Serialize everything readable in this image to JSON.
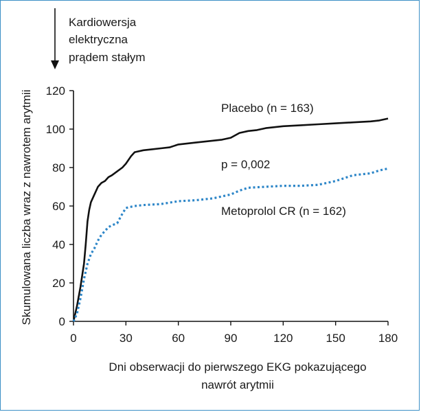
{
  "chart_data": {
    "type": "line",
    "title": "",
    "xlabel_lines": [
      "Dni obserwacji do pierwszego EKG pokazującego",
      "nawrót arytmii"
    ],
    "ylabel": "Skumulowana liczba wraz z nawrotem arytmii",
    "xlim": [
      0,
      180
    ],
    "ylim": [
      0,
      120
    ],
    "xticks": [
      0,
      30,
      60,
      90,
      120,
      150,
      180
    ],
    "yticks": [
      0,
      20,
      40,
      60,
      80,
      100,
      120
    ],
    "grid": false,
    "marker_label_lines": [
      "Kardiowersja",
      "elektryczna",
      "prądem stałym"
    ],
    "p_value": "p = 0,002",
    "series": [
      {
        "name": "Placebo (n = 163)",
        "color": "#111111",
        "style": "solid",
        "x": [
          0,
          2,
          4,
          6,
          7,
          8,
          9,
          10,
          12,
          14,
          16,
          18,
          20,
          22,
          25,
          28,
          30,
          33,
          35,
          40,
          45,
          50,
          55,
          60,
          70,
          80,
          85,
          90,
          95,
          100,
          105,
          110,
          120,
          130,
          140,
          150,
          160,
          170,
          175,
          180
        ],
        "y": [
          0,
          8,
          18,
          30,
          40,
          52,
          58,
          62,
          66,
          70,
          72,
          73,
          75,
          76,
          78,
          80,
          82,
          86,
          88,
          89,
          89.5,
          90,
          90.5,
          92,
          93,
          94,
          94.5,
          95.5,
          98,
          99,
          99.5,
          100.5,
          101.5,
          102,
          102.5,
          103,
          103.5,
          104,
          104.5,
          105.5
        ]
      },
      {
        "name": "Metoprolol CR (n = 162)",
        "color": "#2d86c8",
        "style": "dotted",
        "x": [
          0,
          2,
          4,
          6,
          8,
          10,
          12,
          14,
          16,
          18,
          20,
          22,
          25,
          28,
          30,
          35,
          40,
          50,
          60,
          70,
          80,
          90,
          95,
          100,
          110,
          120,
          130,
          140,
          150,
          160,
          170,
          175,
          180
        ],
        "y": [
          0,
          4,
          12,
          22,
          30,
          35,
          38,
          42,
          45,
          47,
          49,
          50,
          51,
          56,
          59,
          60,
          60.5,
          61,
          62.5,
          63,
          64,
          66,
          68,
          69.5,
          70,
          70.5,
          70.5,
          71,
          73,
          76,
          77,
          78.5,
          79.5
        ]
      }
    ]
  }
}
